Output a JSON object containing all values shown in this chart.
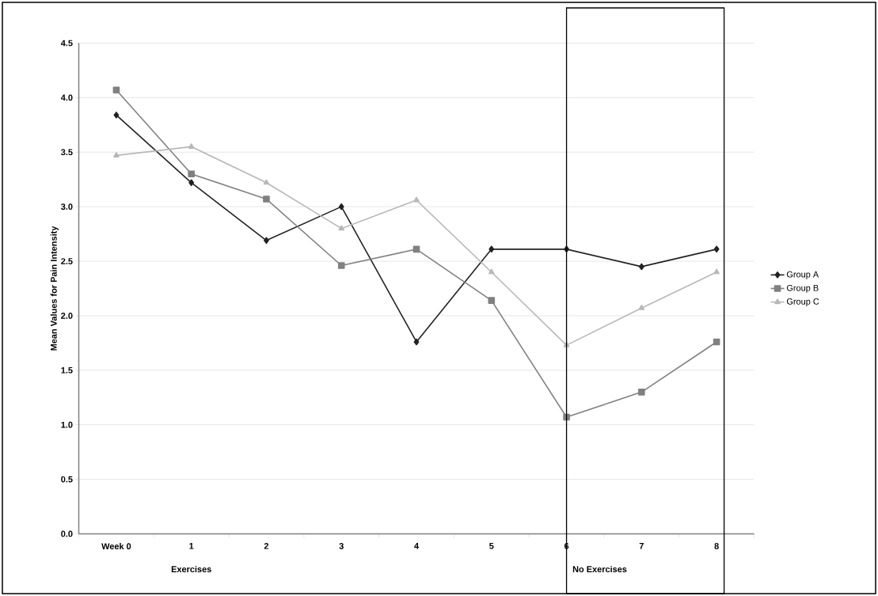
{
  "chart_data": {
    "type": "line",
    "ylabel": "Mean Values for Pain Intensity",
    "categories": [
      "Week 0",
      "1",
      "2",
      "3",
      "4",
      "5",
      "6",
      "7",
      "8"
    ],
    "series": [
      {
        "name": "Group A",
        "color": "#222222",
        "marker": "diamond",
        "values": [
          3.84,
          3.22,
          2.69,
          3.0,
          1.76,
          2.61,
          2.61,
          2.45,
          2.61
        ]
      },
      {
        "name": "Group B",
        "color": "#808080",
        "marker": "square",
        "values": [
          4.07,
          3.3,
          3.07,
          2.46,
          2.61,
          2.14,
          1.07,
          1.3,
          1.76
        ]
      },
      {
        "name": "Group C",
        "color": "#b8b8b8",
        "marker": "triangle",
        "values": [
          3.47,
          3.55,
          3.22,
          2.8,
          3.06,
          2.4,
          1.73,
          2.07,
          2.4
        ]
      }
    ],
    "ylim": [
      0,
      4.5
    ],
    "yticks": [
      {
        "value": 0,
        "label": "0.0"
      },
      {
        "value": 0.5,
        "label": "0.5"
      },
      {
        "value": 1,
        "label": "1.0"
      },
      {
        "value": 1.5,
        "label": "1.5"
      },
      {
        "value": 2,
        "label": "2.0"
      },
      {
        "value": 2.5,
        "label": "2.5"
      },
      {
        "value": 3,
        "label": "3.0"
      },
      {
        "value": 3.5,
        "label": "3.5"
      },
      {
        "value": 4,
        "label": "4.0"
      },
      {
        "value": 4.5,
        "label": "4.5"
      }
    ],
    "grid": "y",
    "legend": "right",
    "line_style": "solid",
    "annotations": [
      "Exercises",
      "No Exercises"
    ]
  }
}
